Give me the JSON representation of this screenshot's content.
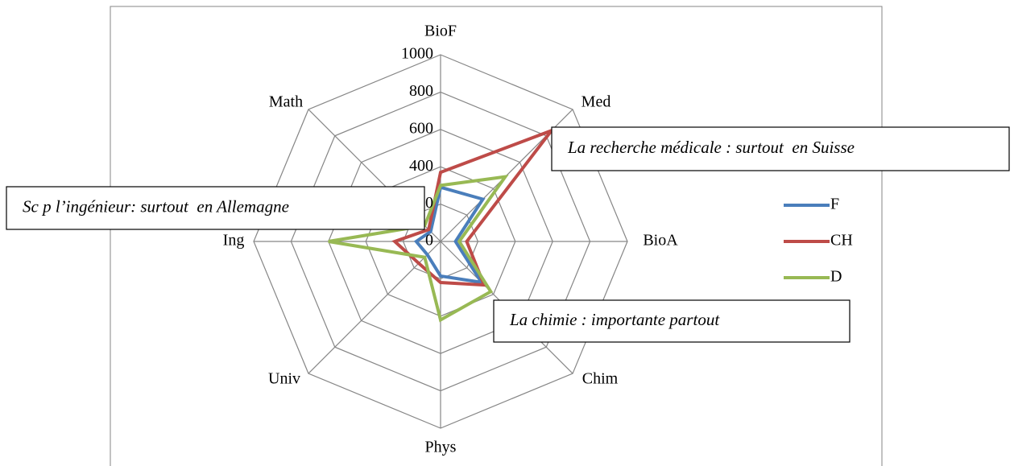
{
  "chart_data": {
    "type": "radar",
    "categories": [
      "BioF",
      "Med",
      "BioA",
      "Chim",
      "Phys",
      "Univ",
      "Ing",
      "Math"
    ],
    "series": [
      {
        "name": "F",
        "color": "#4a7ebb",
        "values": [
          290,
          320,
          80,
          310,
          185,
          100,
          130,
          75
        ]
      },
      {
        "name": "CH",
        "color": "#be4b48",
        "values": [
          370,
          840,
          140,
          330,
          220,
          165,
          245,
          90
        ]
      },
      {
        "name": "D",
        "color": "#98b954",
        "values": [
          300,
          490,
          100,
          380,
          420,
          120,
          600,
          120
        ]
      }
    ],
    "rlim": [
      0,
      1000
    ],
    "rticks": [
      0,
      200,
      400,
      600,
      800,
      1000
    ],
    "grid": true,
    "legend": "right",
    "annotations": [
      "La recherche médicale : surtout  en Suisse",
      "Sc p l’ingénieur: surtout  en Allemagne",
      "La chimie : importante partout"
    ]
  }
}
